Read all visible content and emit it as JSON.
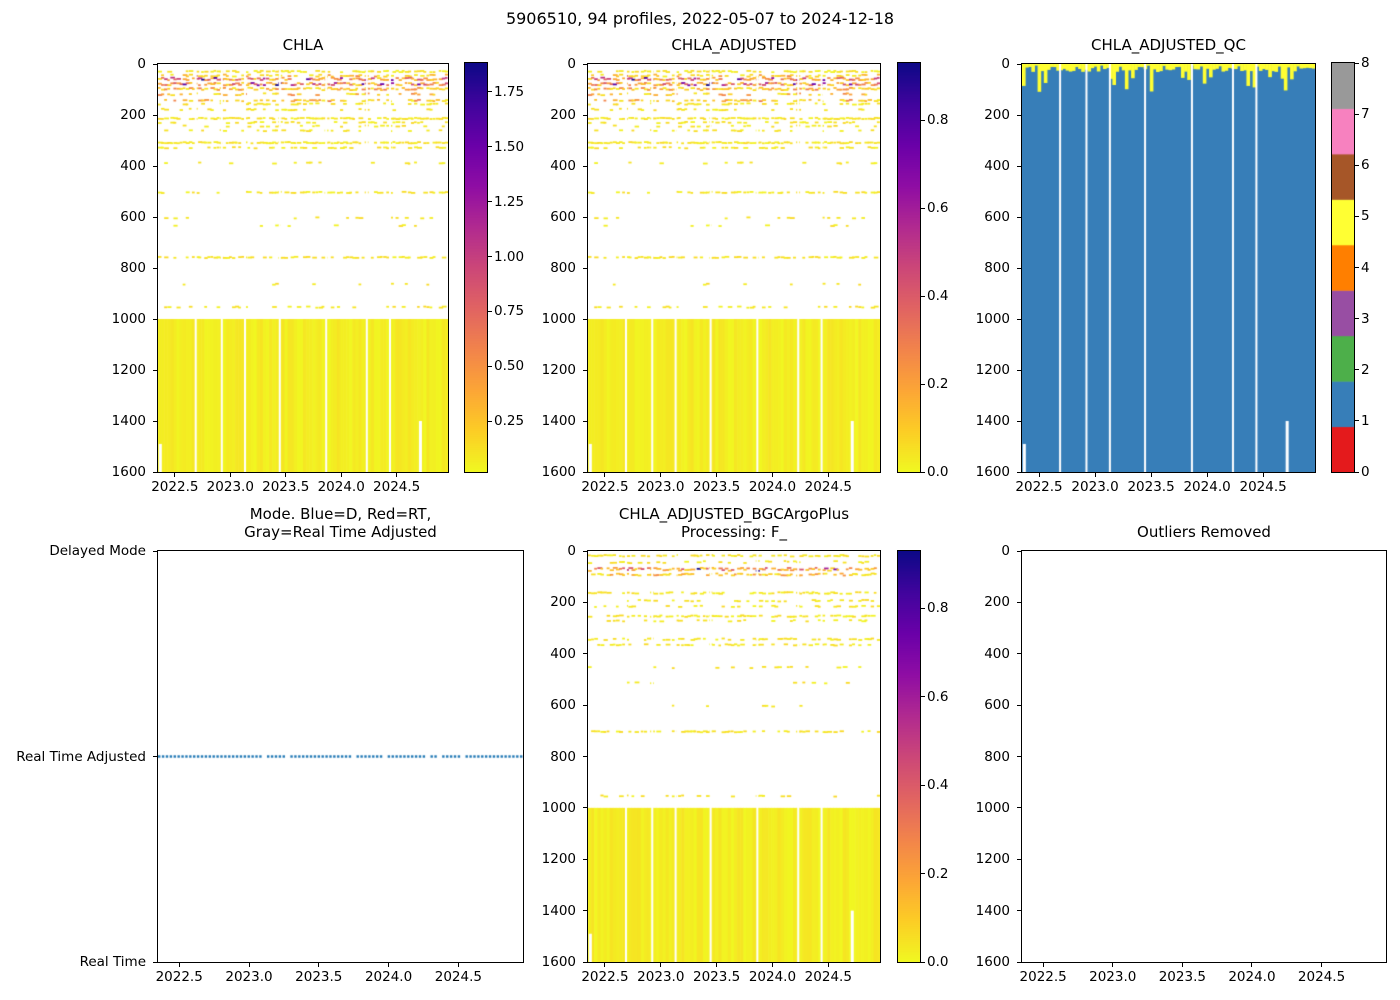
{
  "figure": {
    "suptitle": "5906510, 94 profiles, 2022-05-07 to 2024-12-18",
    "background": "#ffffff"
  },
  "palette": {
    "axis": "#000000",
    "background": "#ffffff",
    "mode_line": "#1f77b4",
    "plasma_stops": [
      [
        0,
        "#0d0887"
      ],
      [
        0.1,
        "#41049d"
      ],
      [
        0.2,
        "#6a00a8"
      ],
      [
        0.3,
        "#8f0da4"
      ],
      [
        0.4,
        "#b12a90"
      ],
      [
        0.5,
        "#cc4778"
      ],
      [
        0.6,
        "#e16462"
      ],
      [
        0.7,
        "#f2844b"
      ],
      [
        0.8,
        "#fca636"
      ],
      [
        0.9,
        "#fcce25"
      ],
      [
        1,
        "#f0f921"
      ]
    ],
    "qc_colors": [
      "#e41a1c",
      "#377eb8",
      "#4daf4a",
      "#984ea3",
      "#ff7f00",
      "#ffff33",
      "#a65628",
      "#f781bf",
      "#999999"
    ]
  },
  "chart_data": [
    {
      "id": "chla",
      "type": "heatmap",
      "title": "CHLA",
      "x_range": [
        2022.348,
        2024.963
      ],
      "x_ticks": [
        "2022.5",
        "2023.0",
        "2023.5",
        "2024.0",
        "2024.5"
      ],
      "x_tick_values": [
        2022.5,
        2023.0,
        2023.5,
        2024.0,
        2024.5
      ],
      "y_range": [
        0,
        1600
      ],
      "y_inverted": true,
      "y_ticks": [
        "0",
        "200",
        "400",
        "600",
        "800",
        "1000",
        "1200",
        "1400",
        "1600"
      ],
      "y_tick_values": [
        0,
        200,
        400,
        600,
        800,
        1000,
        1200,
        1400,
        1600
      ],
      "colormap": "plasma_r",
      "colorbar": {
        "range": [
          0.02,
          1.88
        ],
        "ticks": [
          "0.25",
          "0.50",
          "0.75",
          "1.00",
          "1.25",
          "1.50",
          "1.75"
        ],
        "tick_values": [
          0.25,
          0.5,
          0.75,
          1.0,
          1.25,
          1.5,
          1.75
        ]
      },
      "pattern": {
        "seed": 11,
        "n_profiles": 94,
        "solid_block": {
          "depth_from": 1000,
          "depth_to": 1600
        },
        "speckle_bands": [
          [
            26,
            6,
            0.6,
            0
          ],
          [
            42,
            8,
            0.5,
            1
          ],
          [
            55,
            10,
            0.85,
            2
          ],
          [
            75,
            10,
            0.85,
            2
          ],
          [
            94,
            10,
            0.8,
            1
          ],
          [
            115,
            8,
            0.35,
            1
          ],
          [
            140,
            6,
            0.5,
            1
          ],
          [
            153,
            6,
            0.4,
            0
          ],
          [
            175,
            6,
            0.3,
            0
          ],
          [
            210,
            5,
            0.8,
            0
          ],
          [
            226,
            5,
            0.45,
            0
          ],
          [
            240,
            5,
            0.3,
            0
          ],
          [
            258,
            5,
            0.25,
            0
          ],
          [
            305,
            5,
            0.8,
            0
          ],
          [
            325,
            5,
            0.45,
            0
          ],
          [
            385,
            5,
            0.12,
            0
          ],
          [
            500,
            5,
            0.5,
            0
          ],
          [
            600,
            4,
            0.12,
            0
          ],
          [
            630,
            4,
            0.1,
            0
          ],
          [
            755,
            5,
            0.55,
            0
          ],
          [
            860,
            4,
            0.08,
            0
          ],
          [
            950,
            5,
            0.3,
            0
          ]
        ],
        "profile_gaps": [
          0.13,
          0.22,
          0.3,
          0.42,
          0.58,
          0.72,
          0.8
        ],
        "notches": [
          {
            "x_frac": 0.008,
            "depth_from": 1490
          },
          {
            "x_frac": 0.905,
            "depth_from": 1400
          }
        ]
      }
    },
    {
      "id": "chla_adjusted",
      "type": "heatmap",
      "title": "CHLA_ADJUSTED",
      "x_range": [
        2022.348,
        2024.963
      ],
      "x_ticks": [
        "2022.5",
        "2023.0",
        "2023.5",
        "2024.0",
        "2024.5"
      ],
      "x_tick_values": [
        2022.5,
        2023.0,
        2023.5,
        2024.0,
        2024.5
      ],
      "y_range": [
        0,
        1600
      ],
      "y_inverted": true,
      "y_ticks": [
        "0",
        "200",
        "400",
        "600",
        "800",
        "1000",
        "1200",
        "1400",
        "1600"
      ],
      "y_tick_values": [
        0,
        200,
        400,
        600,
        800,
        1000,
        1200,
        1400,
        1600
      ],
      "colormap": "plasma_r",
      "colorbar": {
        "range": [
          0.0,
          0.93
        ],
        "ticks": [
          "0.0",
          "0.2",
          "0.4",
          "0.6",
          "0.8"
        ],
        "tick_values": [
          0.0,
          0.2,
          0.4,
          0.6,
          0.8
        ]
      },
      "pattern": {
        "seed": 11,
        "n_profiles": 94,
        "solid_block": {
          "depth_from": 1000,
          "depth_to": 1600
        },
        "speckle_bands": [
          [
            26,
            6,
            0.6,
            0
          ],
          [
            42,
            8,
            0.5,
            1
          ],
          [
            55,
            10,
            0.85,
            2
          ],
          [
            75,
            10,
            0.85,
            2
          ],
          [
            94,
            10,
            0.8,
            1
          ],
          [
            115,
            8,
            0.35,
            1
          ],
          [
            140,
            6,
            0.5,
            1
          ],
          [
            153,
            6,
            0.4,
            0
          ],
          [
            175,
            6,
            0.3,
            0
          ],
          [
            210,
            5,
            0.8,
            0
          ],
          [
            226,
            5,
            0.45,
            0
          ],
          [
            240,
            5,
            0.3,
            0
          ],
          [
            258,
            5,
            0.25,
            0
          ],
          [
            305,
            5,
            0.8,
            0
          ],
          [
            325,
            5,
            0.45,
            0
          ],
          [
            385,
            5,
            0.12,
            0
          ],
          [
            500,
            5,
            0.5,
            0
          ],
          [
            600,
            4,
            0.12,
            0
          ],
          [
            630,
            4,
            0.1,
            0
          ],
          [
            755,
            5,
            0.55,
            0
          ],
          [
            860,
            4,
            0.08,
            0
          ],
          [
            950,
            5,
            0.3,
            0
          ]
        ],
        "profile_gaps": [
          0.13,
          0.22,
          0.3,
          0.42,
          0.58,
          0.72,
          0.8
        ],
        "notches": [
          {
            "x_frac": 0.008,
            "depth_from": 1490
          },
          {
            "x_frac": 0.905,
            "depth_from": 1400
          }
        ]
      }
    },
    {
      "id": "qc",
      "type": "heatmap_discrete",
      "title": "CHLA_ADJUSTED_QC",
      "x_range": [
        2022.348,
        2024.963
      ],
      "x_ticks": [
        "2022.5",
        "2023.0",
        "2023.5",
        "2024.0",
        "2024.5"
      ],
      "x_tick_values": [
        2022.5,
        2023.0,
        2023.5,
        2024.0,
        2024.5
      ],
      "y_range": [
        0,
        1600
      ],
      "y_inverted": true,
      "y_ticks": [
        "0",
        "200",
        "400",
        "600",
        "800",
        "1000",
        "1200",
        "1400",
        "1600"
      ],
      "y_tick_values": [
        0,
        200,
        400,
        600,
        800,
        1000,
        1200,
        1400,
        1600
      ],
      "colorbar": {
        "range": [
          0,
          8
        ],
        "ticks": [
          "0",
          "1",
          "2",
          "3",
          "4",
          "5",
          "6",
          "7",
          "8"
        ],
        "tick_values": [
          0,
          1,
          2,
          3,
          4,
          5,
          6,
          7,
          8
        ],
        "discrete_levels": 9
      },
      "pattern": {
        "seed": 23,
        "n_profiles": 94,
        "body_qc": 1,
        "cap_qc": 5,
        "cap_depth_base": [
          6,
          32
        ],
        "cap_depth_spike": [
          45,
          110
        ],
        "spike_prob": 0.13,
        "profile_gaps": [
          0.13,
          0.22,
          0.3,
          0.42,
          0.58,
          0.72,
          0.8
        ],
        "notches": [
          {
            "x_frac": 0.008,
            "depth_from": 1490
          },
          {
            "x_frac": 0.905,
            "depth_from": 1400
          }
        ]
      }
    },
    {
      "id": "mode",
      "type": "categorical_line",
      "title_lines": [
        "Mode. Blue=D, Red=RT,",
        "Gray=Real Time Adjusted"
      ],
      "x_range": [
        2022.348,
        2024.963
      ],
      "x_ticks": [
        "2022.5",
        "2023.0",
        "2023.5",
        "2024.0",
        "2024.5"
      ],
      "x_tick_values": [
        2022.5,
        2023.0,
        2023.5,
        2024.0,
        2024.5
      ],
      "y_categories": [
        "Delayed Mode",
        "Real Time Adjusted",
        "Real Time"
      ],
      "line": {
        "category": "Real Time Adjusted",
        "style": "dotted"
      },
      "pattern": {
        "seed": 5,
        "n_profiles": 94
      }
    },
    {
      "id": "bgc",
      "type": "heatmap",
      "title_lines": [
        "CHLA_ADJUSTED_BGCArgoPlus",
        "Processing: F_"
      ],
      "x_range": [
        2022.348,
        2024.963
      ],
      "x_ticks": [
        "2022.5",
        "2023.0",
        "2023.5",
        "2024.0",
        "2024.5"
      ],
      "x_tick_values": [
        2022.5,
        2023.0,
        2023.5,
        2024.0,
        2024.5
      ],
      "y_range": [
        0,
        1600
      ],
      "y_inverted": true,
      "y_ticks": [
        "0",
        "200",
        "400",
        "600",
        "800",
        "1000",
        "1200",
        "1400",
        "1600"
      ],
      "y_tick_values": [
        0,
        200,
        400,
        600,
        800,
        1000,
        1200,
        1400,
        1600
      ],
      "colormap": "plasma_r",
      "colorbar": {
        "range": [
          0.0,
          0.93
        ],
        "ticks": [
          "0.0",
          "0.2",
          "0.4",
          "0.6",
          "0.8"
        ],
        "tick_values": [
          0.0,
          0.2,
          0.4,
          0.6,
          0.8
        ]
      },
      "pattern": {
        "seed": 37,
        "n_profiles": 94,
        "solid_block": {
          "depth_from": 1000,
          "depth_to": 1600
        },
        "speckle_bands": [
          [
            15,
            6,
            0.6,
            0
          ],
          [
            40,
            10,
            0.35,
            0
          ],
          [
            68,
            12,
            0.9,
            2
          ],
          [
            88,
            8,
            0.75,
            1
          ],
          [
            160,
            6,
            0.5,
            0
          ],
          [
            190,
            6,
            0.3,
            0
          ],
          [
            212,
            5,
            0.3,
            0
          ],
          [
            250,
            6,
            0.6,
            0
          ],
          [
            268,
            5,
            0.35,
            0
          ],
          [
            340,
            6,
            0.6,
            0
          ],
          [
            362,
            5,
            0.45,
            0
          ],
          [
            450,
            5,
            0.25,
            0
          ],
          [
            510,
            4,
            0.06,
            0
          ],
          [
            600,
            4,
            0.1,
            0
          ],
          [
            700,
            5,
            0.55,
            0
          ],
          [
            950,
            5,
            0.25,
            0
          ]
        ],
        "profile_gaps": [
          0.13,
          0.22,
          0.3,
          0.42,
          0.58,
          0.72,
          0.8
        ],
        "notches": [
          {
            "x_frac": 0.008,
            "depth_from": 1490
          },
          {
            "x_frac": 0.905,
            "depth_from": 1400
          }
        ]
      }
    },
    {
      "id": "outliers",
      "type": "empty",
      "title": "Outliers Removed",
      "x_range": [
        2022.348,
        2024.963
      ],
      "x_ticks": [
        "2022.5",
        "2023.0",
        "2023.5",
        "2024.0",
        "2024.5"
      ],
      "x_tick_values": [
        2022.5,
        2023.0,
        2023.5,
        2024.0,
        2024.5
      ],
      "y_range": [
        0,
        1600
      ],
      "y_inverted": true,
      "y_ticks": [
        "0",
        "200",
        "400",
        "600",
        "800",
        "1000",
        "1200",
        "1400",
        "1600"
      ],
      "y_tick_values": [
        0,
        200,
        400,
        600,
        800,
        1000,
        1200,
        1400,
        1600
      ]
    }
  ]
}
